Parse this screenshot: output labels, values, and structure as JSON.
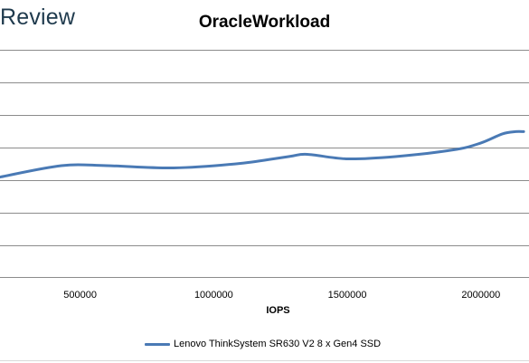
{
  "branding": {
    "logo_text": "Review"
  },
  "chart_data": {
    "type": "line",
    "title": "OracleWorkload",
    "xlabel": "IOPS",
    "ylabel": "",
    "x_ticks": [
      "500000",
      "1000000",
      "1500000",
      "2000000"
    ],
    "xlim": [
      200000,
      2180000
    ],
    "grid": true,
    "legend_position": "bottom",
    "series": [
      {
        "name": "Lenovo ThinkSystem SR630 V2 8 x Gen4 SSD",
        "color": "#4a7ab5",
        "points": [
          [
            200000,
            0.44
          ],
          [
            430000,
            0.49
          ],
          [
            600000,
            0.49
          ],
          [
            850000,
            0.48
          ],
          [
            1100000,
            0.5
          ],
          [
            1280000,
            0.53
          ],
          [
            1350000,
            0.54
          ],
          [
            1500000,
            0.52
          ],
          [
            1680000,
            0.53
          ],
          [
            1900000,
            0.56
          ],
          [
            2000000,
            0.59
          ],
          [
            2080000,
            0.63
          ],
          [
            2130000,
            0.64
          ],
          [
            2160000,
            0.64
          ]
        ]
      }
    ]
  }
}
